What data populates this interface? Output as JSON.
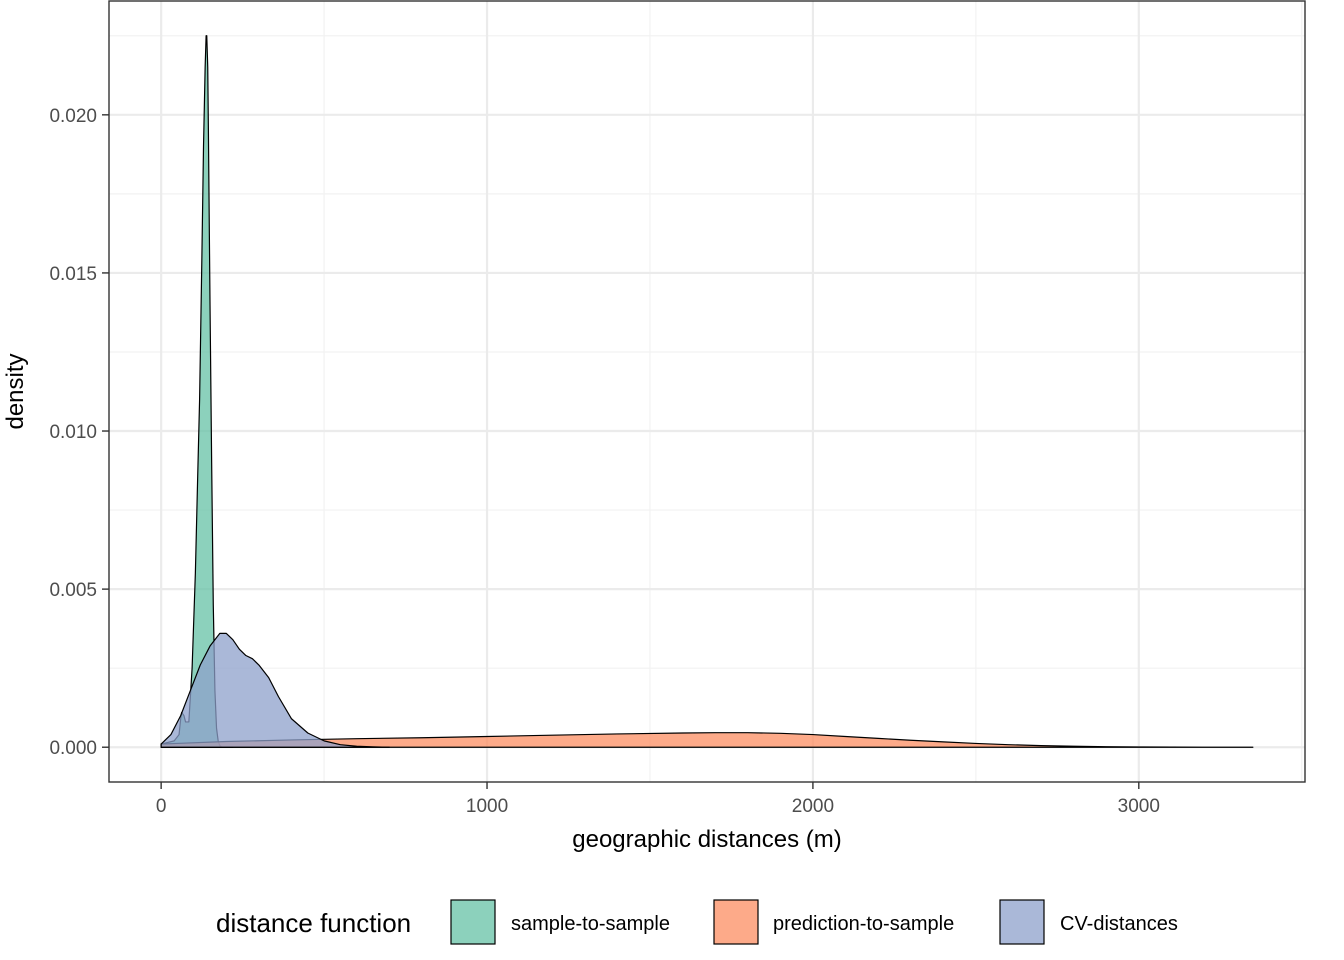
{
  "chart_data": {
    "type": "area",
    "xlabel": "geographic distances (m)",
    "ylabel": "density",
    "xlim": [
      -160,
      3510
    ],
    "ylim": [
      -0.0011,
      0.0236
    ],
    "x_ticks": [
      0,
      1000,
      2000,
      3000
    ],
    "x_tick_labels": [
      "0",
      "1000",
      "2000",
      "3000"
    ],
    "y_ticks": [
      0.0,
      0.005,
      0.01,
      0.015,
      0.02
    ],
    "y_tick_labels": [
      "0.000",
      "0.005",
      "0.010",
      "0.015",
      "0.020"
    ],
    "grid": true,
    "legend": {
      "title": "distance function",
      "position": "bottom"
    },
    "series": [
      {
        "name": "sample-to-sample",
        "color": "#66c2a5",
        "x": [
          0,
          40,
          55,
          60,
          63,
          70,
          75,
          85,
          95,
          105,
          112,
          118,
          125,
          130,
          135,
          138,
          140,
          143,
          145,
          150,
          155,
          160,
          165,
          170,
          175,
          180,
          185,
          190,
          195,
          200,
          210,
          220
        ],
        "y": [
          0.0001,
          0.0002,
          0.0004,
          0.0009,
          0.0011,
          0.001,
          0.0008,
          0.0008,
          0.0025,
          0.0055,
          0.0085,
          0.011,
          0.0155,
          0.019,
          0.0215,
          0.0225,
          0.0225,
          0.0215,
          0.0195,
          0.014,
          0.009,
          0.0045,
          0.0018,
          0.0006,
          0.0002,
          5e-05,
          1e-05,
          0.0,
          0.0,
          0.0,
          0.0,
          0.0
        ]
      },
      {
        "name": "prediction-to-sample",
        "color": "#fc8d62",
        "x": [
          0,
          200,
          400,
          600,
          800,
          1000,
          1200,
          1400,
          1600,
          1700,
          1800,
          1900,
          2000,
          2100,
          2200,
          2300,
          2400,
          2500,
          2600,
          2700,
          2800,
          2900,
          3000,
          3100,
          3200,
          3350
        ],
        "y": [
          0.0001,
          0.00018,
          0.00023,
          0.00027,
          0.0003,
          0.00034,
          0.00038,
          0.00042,
          0.00045,
          0.00046,
          0.00046,
          0.00044,
          0.0004,
          0.00034,
          0.00028,
          0.00022,
          0.00017,
          0.00012,
          8e-05,
          5e-05,
          3e-05,
          1.5e-05,
          8e-06,
          4e-06,
          1e-06,
          0.0
        ]
      },
      {
        "name": "CV-distances",
        "color": "#8da0cb",
        "x": [
          0,
          30,
          60,
          90,
          120,
          150,
          180,
          200,
          220,
          240,
          260,
          280,
          300,
          330,
          360,
          400,
          450,
          500,
          550,
          600,
          650,
          700
        ],
        "y": [
          0.0001,
          0.0004,
          0.001,
          0.0018,
          0.0026,
          0.0032,
          0.0036,
          0.0036,
          0.0034,
          0.0031,
          0.0029,
          0.0028,
          0.0026,
          0.0022,
          0.0016,
          0.0009,
          0.00045,
          0.0002,
          8e-05,
          3e-05,
          1e-05,
          0.0
        ]
      }
    ]
  }
}
